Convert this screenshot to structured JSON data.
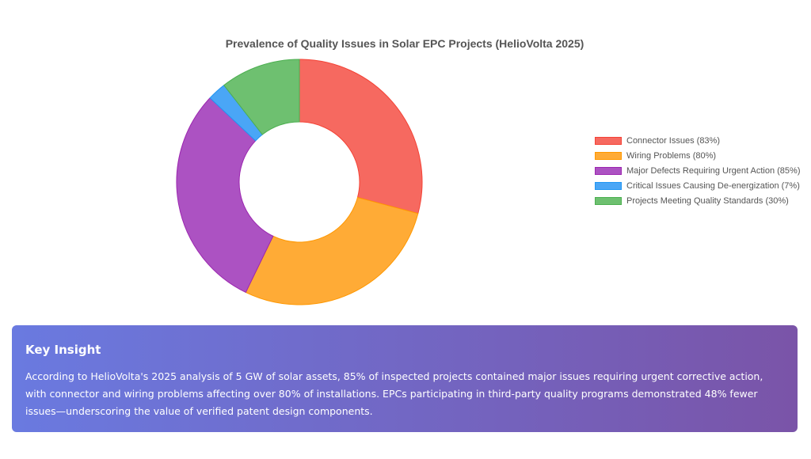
{
  "colors": {
    "connector": "#f66960",
    "wiring": "#ffab36",
    "major": "#ac52c2",
    "critical": "#4aa6f6",
    "standards": "#6ec070",
    "insight_gradient_start": "#6a7ae0",
    "insight_gradient_end": "#7a54a8"
  },
  "chart_data": {
    "type": "pie",
    "variant": "doughnut",
    "title": "Prevalence of Quality Issues in Solar EPC Projects (HelioVolta 2025)",
    "legend_position": "right",
    "categories": [
      "Connector Issues (83%)",
      "Wiring Problems (80%)",
      "Major Defects Requiring Urgent Action (85%)",
      "Critical Issues Causing De-energization (7%)",
      "Projects Meeting Quality Standards (30%)"
    ],
    "values": [
      83,
      80,
      85,
      7,
      30
    ],
    "series_colors": [
      "#f66960",
      "#ffab36",
      "#ac52c2",
      "#4aa6f6",
      "#6ec070"
    ],
    "border_colors": [
      "#f44336",
      "#ff9800",
      "#9c27b0",
      "#2196f3",
      "#4caf50"
    ]
  },
  "insight": {
    "heading": "Key Insight",
    "body": "According to HelioVolta's 2025 analysis of 5 GW of solar assets, 85% of inspected projects contained major issues requiring urgent corrective action, with connector and wiring problems affecting over 80% of installations. EPCs participating in third-party quality programs demonstrated 48% fewer issues—underscoring the value of verified patent design components."
  }
}
